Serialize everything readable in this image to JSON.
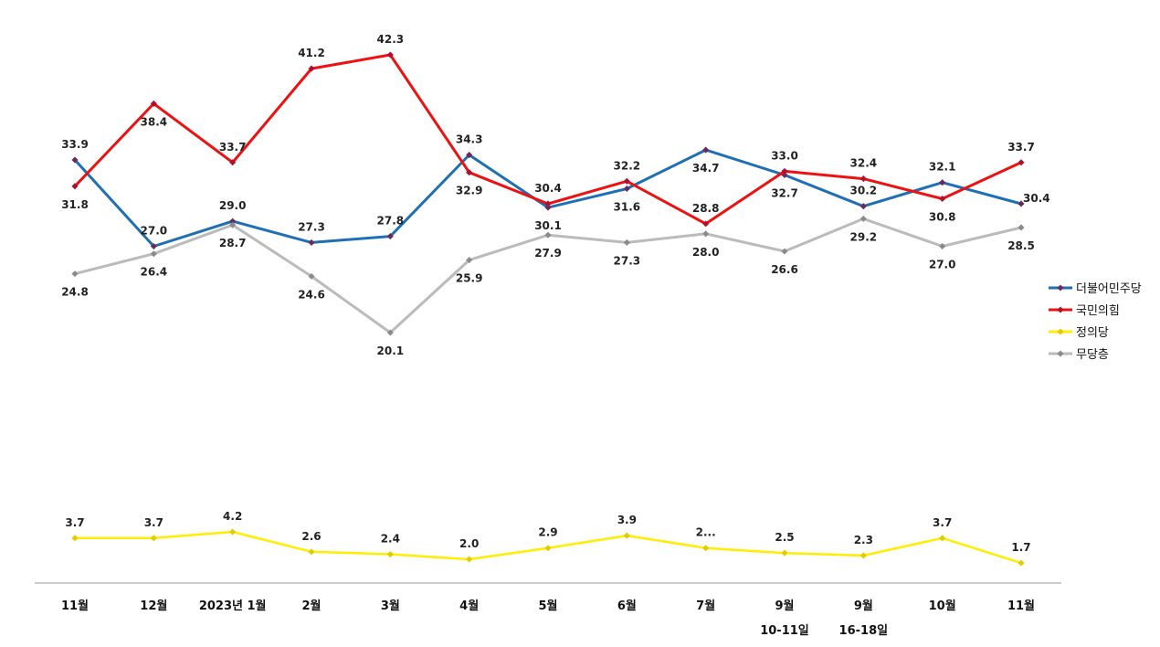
{
  "chart_data": {
    "type": "line",
    "title": "",
    "xlabel": "",
    "ylabel": "",
    "grid": false,
    "legend_position": "right",
    "categories": [
      [
        "11월"
      ],
      [
        "12월"
      ],
      [
        "2023년 1월"
      ],
      [
        "2월"
      ],
      [
        "3월"
      ],
      [
        "4월"
      ],
      [
        "5월"
      ],
      [
        "6월"
      ],
      [
        "7월"
      ],
      [
        "9월",
        "10-11일"
      ],
      [
        "9월",
        "16-18일"
      ],
      [
        "10월"
      ],
      [
        "11월"
      ]
    ],
    "series": [
      {
        "name": "더불어민주당",
        "color": "#1f6fb5",
        "marker_color": "#6a2a5a",
        "values": [
          33.9,
          27.0,
          29.0,
          27.3,
          27.8,
          34.3,
          30.1,
          31.6,
          34.7,
          32.7,
          30.2,
          32.1,
          30.4
        ],
        "labels": [
          "33.9",
          "27.0",
          "29.0",
          "27.3",
          "27.8",
          "34.3",
          "30.1",
          "31.6",
          "34.7",
          "32.7",
          "30.2",
          "32.1",
          "30.4"
        ]
      },
      {
        "name": "국민의힘",
        "color": "#ee1111",
        "marker_color": "#b01030",
        "values": [
          31.8,
          38.4,
          33.7,
          41.2,
          42.3,
          32.9,
          30.4,
          32.2,
          28.8,
          33.0,
          32.4,
          30.8,
          33.7
        ],
        "labels": [
          "31.8",
          "38.4",
          "33.7",
          "41.2",
          "42.3",
          "32.9",
          "30.4",
          "32.2",
          "28.8",
          "33.0",
          "32.4",
          "30.8",
          "33.7"
        ]
      },
      {
        "name": "정의당",
        "color": "#ffee00",
        "marker_color": "#e0cc00",
        "values": [
          3.7,
          3.7,
          4.2,
          2.6,
          2.4,
          2.0,
          2.9,
          3.9,
          2.9,
          2.5,
          2.3,
          3.7,
          1.7
        ],
        "labels": [
          "3.7",
          "3.7",
          "4.2",
          "2.6",
          "2.4",
          "2.0",
          "2.9",
          "3.9",
          "2...",
          "2.5",
          "2.3",
          "3.7",
          "1.7"
        ]
      },
      {
        "name": "무당층",
        "color": "#bbbbbb",
        "marker_color": "#8a8a8a",
        "values": [
          24.8,
          26.4,
          28.7,
          24.6,
          20.1,
          25.9,
          27.9,
          27.3,
          28.0,
          26.6,
          29.2,
          27.0,
          28.5
        ],
        "labels": [
          "24.8",
          "26.4",
          "28.7",
          "24.6",
          "20.1",
          "25.9",
          "27.9",
          "27.3",
          "28.0",
          "26.6",
          "29.2",
          "27.0",
          "28.5"
        ]
      }
    ]
  }
}
